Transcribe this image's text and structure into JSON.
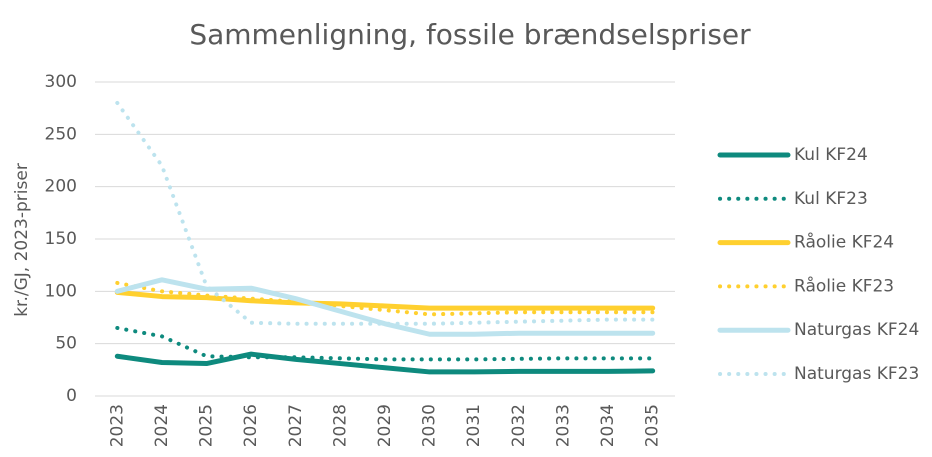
{
  "chart_data": {
    "type": "line",
    "title": "Sammenligning, fossile brændselspriser",
    "y_label": "kr./GJ, 2023-priser",
    "categories": [
      "2023",
      "2024",
      "2025",
      "2026",
      "2027",
      "2028",
      "2029",
      "2030",
      "2031",
      "2032",
      "2033",
      "2034",
      "2035"
    ],
    "series": [
      {
        "name": "Kul KF24",
        "color": "#0e8a7e",
        "line_style": "solid",
        "values": [
          38,
          32,
          31,
          40,
          35,
          31,
          27,
          23,
          23,
          23.5,
          23.5,
          23.5,
          24
        ]
      },
      {
        "name": "Kul KF23",
        "color": "#0e8a7e",
        "line_style": "dotted",
        "values": [
          65,
          57,
          38,
          37,
          37,
          36,
          35,
          35,
          35,
          35.5,
          36,
          36,
          36
        ]
      },
      {
        "name": "Råolie KF24",
        "color": "#ffd02f",
        "line_style": "solid",
        "values": [
          99,
          95,
          94,
          91,
          89,
          88,
          86,
          84,
          84,
          84,
          84,
          84,
          84
        ]
      },
      {
        "name": "Råolie KF23",
        "color": "#ffd02f",
        "line_style": "dotted",
        "values": [
          108,
          100,
          96,
          93,
          90,
          86,
          82,
          78,
          79,
          80,
          80,
          80,
          80
        ]
      },
      {
        "name": "Naturgas KF24",
        "color": "#bde3ee",
        "line_style": "solid",
        "values": [
          100,
          111,
          102,
          103,
          93,
          81,
          69,
          59,
          59,
          60,
          60,
          60,
          60
        ]
      },
      {
        "name": "Naturgas KF23",
        "color": "#bde3ee",
        "line_style": "dotted",
        "values": [
          280,
          220,
          105,
          70,
          69,
          69,
          69,
          69,
          70,
          71,
          72,
          73,
          73
        ]
      }
    ],
    "ylim": [
      0,
      300
    ],
    "yticks": [
      0,
      50,
      100,
      150,
      200,
      250,
      300
    ],
    "grid": true,
    "legend": "right"
  }
}
